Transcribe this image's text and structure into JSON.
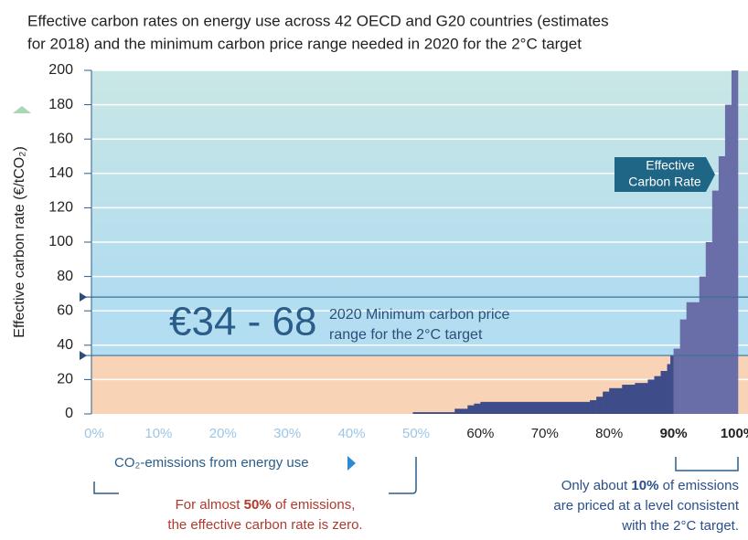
{
  "chart_data": {
    "type": "step-area",
    "title_lines": [
      "Effective carbon rates on energy use across 42 OECD and G20 countries (estimates",
      "for 2018) and the minimum carbon price range needed in 2020 for the 2°C target"
    ],
    "y_label": "Effective carbon rate (€/tCO₂)",
    "x_label": "CO₂-emissions from energy use",
    "xlim": [
      0,
      100
    ],
    "ylim": [
      0,
      200
    ],
    "yticks": [
      0,
      20,
      40,
      60,
      80,
      100,
      120,
      140,
      160,
      180,
      200
    ],
    "xticks": [
      {
        "value": 0,
        "label": "0%"
      },
      {
        "value": 10,
        "label": "10%"
      },
      {
        "value": 20,
        "label": "20%"
      },
      {
        "value": 30,
        "label": "30%"
      },
      {
        "value": 40,
        "label": "40%"
      },
      {
        "value": 50,
        "label": "50%"
      },
      {
        "value": 60,
        "label": "60%"
      },
      {
        "value": 70,
        "label": "70%"
      },
      {
        "value": 80,
        "label": "80%"
      },
      {
        "value": 90,
        "label": "90%"
      },
      {
        "value": 100,
        "label": "100%"
      }
    ],
    "xtick_colors": [
      "#9cc6e6",
      "#9cc6e6",
      "#9cc6e6",
      "#9cc6e6",
      "#9cc6e6",
      "#9cc6e6",
      "#222222",
      "#222222",
      "#222222",
      "#222222",
      "#222222"
    ],
    "xtick_bold": [
      false,
      false,
      false,
      false,
      false,
      false,
      false,
      false,
      false,
      true,
      true
    ],
    "grid": true,
    "segments": [
      {
        "color": "#3e4d8a",
        "x": [
          0,
          49.5,
          56,
          58,
          59,
          60,
          77,
          78,
          79,
          80,
          82,
          84,
          86,
          87,
          88,
          89,
          89.5
        ],
        "values": [
          0,
          1,
          3,
          5,
          6,
          7,
          8,
          10,
          13,
          15,
          17,
          18,
          20,
          22,
          25,
          29,
          34
        ]
      },
      {
        "color": "#6a6ea8",
        "x": [
          90,
          91,
          92,
          93,
          94,
          95,
          96,
          97,
          98,
          99
        ],
        "values": [
          38,
          55,
          65,
          65,
          80,
          100,
          130,
          150,
          180,
          200
        ]
      }
    ],
    "price_range": [
      34,
      68
    ],
    "price_label": "€34 - 68",
    "price_text": [
      "2020 Minimum carbon price",
      "range for the 2°C target"
    ],
    "callout": [
      "Effective",
      "Carbon Rate"
    ],
    "note_left": [
      [
        "For almost ",
        "50%",
        " of emissions,"
      ],
      [
        "the effective carbon rate is zero."
      ]
    ],
    "note_right": [
      [
        "Only about ",
        "10%",
        " of emissions"
      ],
      [
        "are priced at a level consistent"
      ],
      [
        "with the 2°C target."
      ]
    ]
  }
}
